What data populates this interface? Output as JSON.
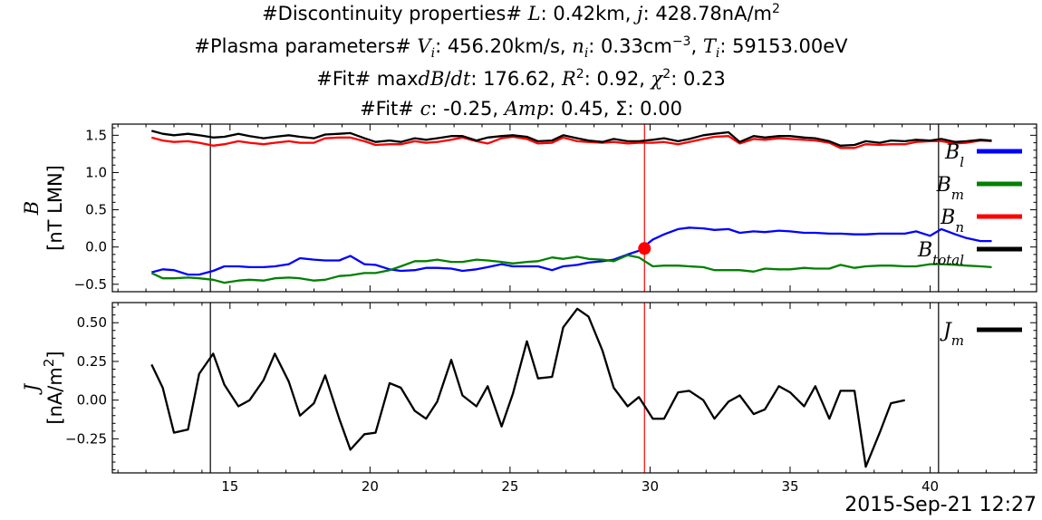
{
  "titles": [
    "#Discontinuity properties# $L$: 0.42km, $j$: 428.78nA/m$^2$",
    "#Plasma parameters# $V_i$: 456.20km/s, $n_i$: 0.33cm$^{-3}$, $T_i$: 59153.00eV",
    "#Fit# max$dB/dt$: 176.62, $R^2$: 0.92, $\\chi^2$: 0.23",
    "#Fit# $c$: -0.25, $Amp$: 0.45, $\\Sigma$: 0.00"
  ],
  "timestamp": "2015-Sep-21 12:27",
  "colors": {
    "Bl": "#0000ff",
    "Bm": "#008000",
    "Bn": "#ff0000",
    "Btotal": "#000000",
    "Jm": "#000000",
    "marker": "#ff0000",
    "center_line": "#ff0000",
    "bound_line": "#000000"
  },
  "chart_data": [
    {
      "type": "line",
      "ylabel": [
        "$B$",
        "[nT LMN]"
      ],
      "xlim": [
        10.8,
        43.8
      ],
      "ylim": [
        -0.6,
        1.65
      ],
      "yticks": [
        -0.5,
        0.0,
        0.5,
        1.0,
        1.5
      ],
      "ytick_labels": [
        "−0.5",
        "0.0",
        "0.5",
        "1.0",
        "1.5"
      ],
      "legend_position": "right",
      "x": [
        12.2,
        12.6,
        13.0,
        13.5,
        13.9,
        14.4,
        14.8,
        15.3,
        15.7,
        16.2,
        16.6,
        17.1,
        17.5,
        18.0,
        18.4,
        18.9,
        19.3,
        19.8,
        20.2,
        20.7,
        21.1,
        21.6,
        22.0,
        22.4,
        22.9,
        23.3,
        23.8,
        24.2,
        24.7,
        25.1,
        25.6,
        26.0,
        26.5,
        26.9,
        27.4,
        27.8,
        28.3,
        28.7,
        29.2,
        29.6,
        30.1,
        30.5,
        31.0,
        31.4,
        31.9,
        32.3,
        32.8,
        33.2,
        33.7,
        34.1,
        34.6,
        35.0,
        35.5,
        35.9,
        36.4,
        36.8,
        37.3,
        37.7,
        38.2,
        38.6,
        39.1,
        39.5,
        40.0,
        40.4,
        40.9,
        41.3,
        41.8,
        42.2
      ],
      "vertical_lines": [
        14.3,
        29.8,
        40.3
      ],
      "marker": {
        "x": 29.8,
        "y": -0.02
      },
      "series": [
        {
          "name": "$B_l$",
          "values": [
            -0.34,
            -0.3,
            -0.31,
            -0.37,
            -0.37,
            -0.32,
            -0.26,
            -0.26,
            -0.27,
            -0.27,
            -0.26,
            -0.23,
            -0.15,
            -0.17,
            -0.18,
            -0.18,
            -0.12,
            -0.23,
            -0.24,
            -0.3,
            -0.32,
            -0.31,
            -0.28,
            -0.28,
            -0.29,
            -0.32,
            -0.3,
            -0.27,
            -0.23,
            -0.26,
            -0.26,
            -0.26,
            -0.31,
            -0.26,
            -0.24,
            -0.21,
            -0.19,
            -0.17,
            -0.1,
            -0.05,
            0.1,
            0.17,
            0.24,
            0.26,
            0.25,
            0.23,
            0.24,
            0.19,
            0.21,
            0.2,
            0.22,
            0.21,
            0.19,
            0.19,
            0.18,
            0.18,
            0.17,
            0.17,
            0.18,
            0.18,
            0.18,
            0.21,
            0.15,
            0.24,
            0.17,
            0.12,
            0.08,
            0.08
          ]
        },
        {
          "name": "$B_m$",
          "values": [
            -0.35,
            -0.42,
            -0.42,
            -0.41,
            -0.42,
            -0.44,
            -0.48,
            -0.45,
            -0.44,
            -0.45,
            -0.42,
            -0.41,
            -0.42,
            -0.45,
            -0.44,
            -0.39,
            -0.38,
            -0.35,
            -0.35,
            -0.31,
            -0.26,
            -0.19,
            -0.19,
            -0.17,
            -0.2,
            -0.2,
            -0.17,
            -0.18,
            -0.2,
            -0.22,
            -0.2,
            -0.19,
            -0.14,
            -0.16,
            -0.13,
            -0.16,
            -0.17,
            -0.19,
            -0.11,
            -0.14,
            -0.26,
            -0.25,
            -0.25,
            -0.26,
            -0.27,
            -0.31,
            -0.31,
            -0.31,
            -0.33,
            -0.29,
            -0.3,
            -0.3,
            -0.28,
            -0.29,
            -0.29,
            -0.24,
            -0.28,
            -0.26,
            -0.25,
            -0.25,
            -0.26,
            -0.26,
            -0.23,
            -0.23,
            -0.24,
            -0.25,
            -0.26,
            -0.27
          ]
        },
        {
          "name": "$B_n$",
          "values": [
            1.47,
            1.43,
            1.41,
            1.42,
            1.4,
            1.36,
            1.38,
            1.42,
            1.4,
            1.38,
            1.4,
            1.42,
            1.4,
            1.4,
            1.46,
            1.47,
            1.47,
            1.42,
            1.37,
            1.38,
            1.38,
            1.42,
            1.4,
            1.41,
            1.44,
            1.47,
            1.42,
            1.39,
            1.46,
            1.48,
            1.45,
            1.39,
            1.4,
            1.47,
            1.42,
            1.41,
            1.4,
            1.41,
            1.39,
            1.4,
            1.4,
            1.41,
            1.38,
            1.41,
            1.45,
            1.48,
            1.49,
            1.39,
            1.45,
            1.44,
            1.46,
            1.45,
            1.44,
            1.43,
            1.4,
            1.33,
            1.33,
            1.38,
            1.37,
            1.38,
            1.38,
            1.41,
            1.42,
            1.42,
            1.39,
            1.4,
            1.43,
            1.42
          ]
        },
        {
          "name": "$B_{total}$",
          "values": [
            1.56,
            1.52,
            1.5,
            1.52,
            1.5,
            1.47,
            1.48,
            1.52,
            1.49,
            1.46,
            1.48,
            1.5,
            1.48,
            1.46,
            1.51,
            1.52,
            1.53,
            1.46,
            1.41,
            1.43,
            1.41,
            1.46,
            1.44,
            1.46,
            1.49,
            1.49,
            1.43,
            1.47,
            1.49,
            1.5,
            1.48,
            1.42,
            1.43,
            1.5,
            1.46,
            1.43,
            1.41,
            1.45,
            1.42,
            1.42,
            1.44,
            1.46,
            1.42,
            1.45,
            1.5,
            1.52,
            1.54,
            1.41,
            1.49,
            1.47,
            1.49,
            1.49,
            1.47,
            1.46,
            1.42,
            1.36,
            1.37,
            1.42,
            1.4,
            1.43,
            1.42,
            1.44,
            1.43,
            1.45,
            1.41,
            1.42,
            1.44,
            1.43
          ]
        }
      ]
    },
    {
      "type": "line",
      "ylabel": [
        "$J$",
        "[nA/m$^2$]"
      ],
      "xlim": [
        10.8,
        43.8
      ],
      "ylim": [
        -0.47,
        0.63
      ],
      "yticks": [
        -0.25,
        0.0,
        0.25,
        0.5
      ],
      "ytick_labels": [
        "−0.25",
        "0.00",
        "0.25",
        "0.50"
      ],
      "xticks": [
        15,
        20,
        25,
        30,
        35,
        40
      ],
      "xtick_labels": [
        "15",
        "20",
        "25",
        "30",
        "35",
        "40"
      ],
      "legend_position": "right",
      "x": [
        12.2,
        12.6,
        13.0,
        13.5,
        13.9,
        14.4,
        14.8,
        15.3,
        15.7,
        16.2,
        16.6,
        17.1,
        17.5,
        18.0,
        18.4,
        18.9,
        19.3,
        19.8,
        20.2,
        20.7,
        21.1,
        21.6,
        22.0,
        22.4,
        22.9,
        23.3,
        23.8,
        24.2,
        24.7,
        25.1,
        25.6,
        26.0,
        26.5,
        26.9,
        27.4,
        27.8,
        28.3,
        28.7,
        29.2,
        29.6,
        30.1,
        30.5,
        31.0,
        31.4,
        31.9,
        32.3,
        32.8,
        33.2,
        33.7,
        34.1,
        34.6,
        35.0,
        35.5,
        35.9,
        36.4,
        36.8,
        37.3,
        37.7,
        38.2,
        38.6,
        39.1,
        39.5,
        40.0,
        40.4,
        40.9,
        41.3,
        41.8,
        42.2
      ],
      "vertical_lines": [
        14.3,
        29.8,
        40.3
      ],
      "series": [
        {
          "name": "$J_m$",
          "values": [
            0.23,
            0.08,
            -0.21,
            -0.19,
            0.17,
            0.3,
            0.1,
            -0.04,
            0.0,
            0.13,
            0.3,
            0.12,
            -0.1,
            -0.02,
            0.16,
            -0.12,
            -0.32,
            -0.22,
            -0.21,
            0.11,
            0.08,
            -0.07,
            -0.12,
            -0.01,
            0.26,
            0.03,
            -0.04,
            0.09,
            -0.17,
            0.04,
            0.38,
            0.14,
            0.15,
            0.47,
            0.59,
            0.54,
            0.32,
            0.08,
            -0.04,
            0.02,
            -0.12,
            -0.12,
            0.05,
            0.06,
            0.0,
            -0.12,
            -0.01,
            0.03,
            -0.09,
            -0.06,
            0.09,
            0.05,
            -0.04,
            0.09,
            -0.12,
            0.06,
            0.06,
            -0.43,
            -0.21,
            -0.02,
            0.0,
            null,
            null,
            null,
            null,
            null,
            null,
            null
          ]
        }
      ]
    }
  ]
}
